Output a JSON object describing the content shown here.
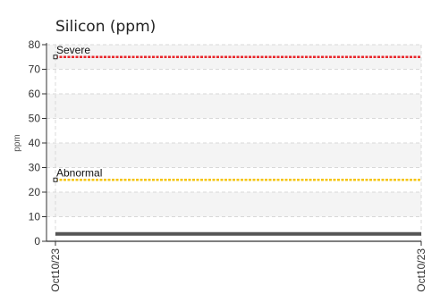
{
  "chart_data": {
    "type": "line",
    "title": "Silicon (ppm)",
    "xlabel": "",
    "ylabel": "ppm",
    "ylim": [
      0,
      80
    ],
    "y_ticks": [
      0,
      10,
      20,
      30,
      40,
      50,
      60,
      70,
      80
    ],
    "y_tick_labels": [
      "0",
      "10",
      "20",
      "30",
      "40",
      "50",
      "60",
      "70",
      "80"
    ],
    "x_tick_labels": [
      "Oct10/23",
      "Oct10/23"
    ],
    "grid": true,
    "series": [
      {
        "values": [
          3,
          3
        ],
        "color": "#555555"
      }
    ],
    "thresholds": [
      {
        "label": "Severe",
        "value": 75,
        "color": "#e8262b"
      },
      {
        "label": "Abnormal",
        "value": 25,
        "color": "#f5c40a"
      }
    ]
  }
}
